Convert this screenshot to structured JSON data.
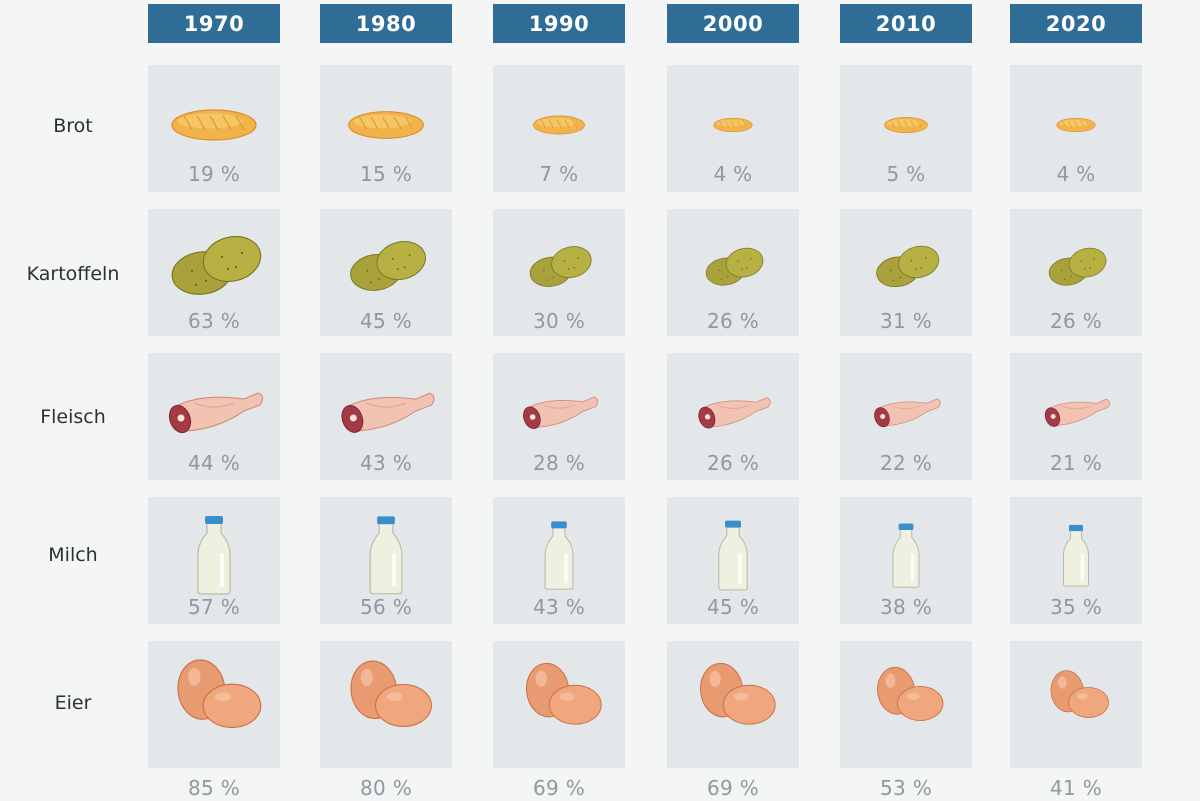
{
  "chart_data": {
    "type": "table",
    "columns": [
      "1970",
      "1980",
      "1990",
      "2000",
      "2010",
      "2020"
    ],
    "rows": [
      {
        "label": "Brot",
        "icon": "bread-icon",
        "values": [
          "19 %",
          "15 %",
          "7 %",
          "4 %",
          "5 %",
          "4 %"
        ],
        "numbers": [
          19,
          15,
          7,
          4,
          5,
          4
        ]
      },
      {
        "label": "Kartoffeln",
        "icon": "potatoes-icon",
        "values": [
          "63 %",
          "45 %",
          "30 %",
          "26 %",
          "31 %",
          "26 %"
        ],
        "numbers": [
          63,
          45,
          30,
          26,
          31,
          26
        ]
      },
      {
        "label": "Fleisch",
        "icon": "meat-icon",
        "values": [
          "44 %",
          "43 %",
          "28 %",
          "26 %",
          "22 %",
          "21 %"
        ],
        "numbers": [
          44,
          43,
          28,
          26,
          22,
          21
        ]
      },
      {
        "label": "Milch",
        "icon": "milk-bottle-icon",
        "values": [
          "57 %",
          "56 %",
          "43 %",
          "45 %",
          "38 %",
          "35 %"
        ],
        "numbers": [
          57,
          56,
          43,
          45,
          38,
          35
        ]
      },
      {
        "label": "Eier",
        "icon": "eggs-icon",
        "values": [
          "85 %",
          "80 %",
          "69 %",
          "69 %",
          "53 %",
          "41 %"
        ],
        "numbers": [
          85,
          80,
          69,
          69,
          53,
          41
        ]
      }
    ],
    "colors": {
      "header": "#2f6d97",
      "cell": "#e3e7ea",
      "background": "#f4f5f5",
      "percent_text": "#8f999f",
      "label_text": "#2b3136"
    }
  }
}
